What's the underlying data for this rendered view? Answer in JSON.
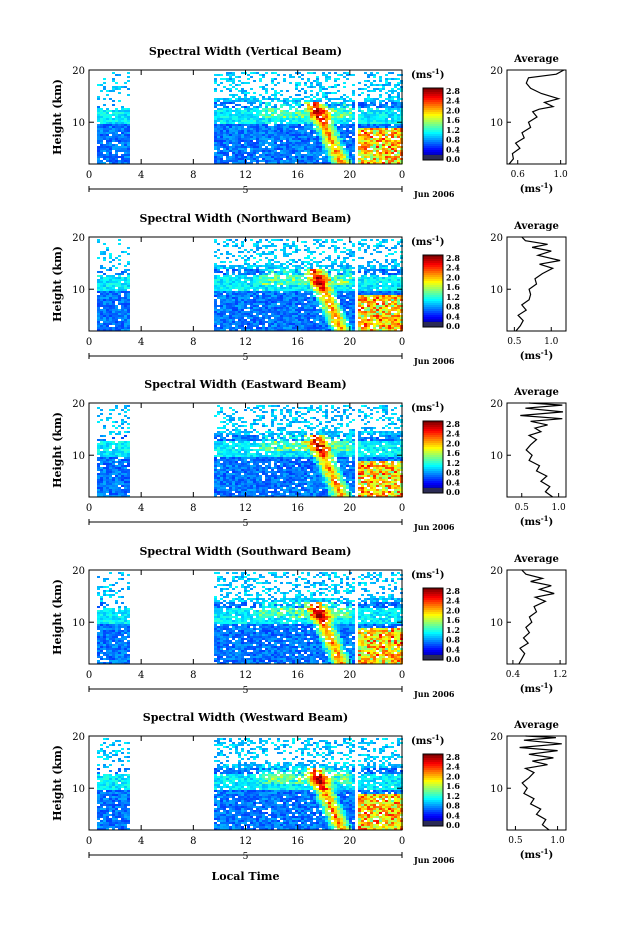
{
  "figure": {
    "xlabel": "Local Time",
    "date_label": "Jun 2006",
    "day_label": "5",
    "avg_title": "Average",
    "unit_label": "(ms",
    "unit_exp": "-1",
    "unit_close": ")",
    "ylabel": "Height (km)"
  },
  "chart_data": [
    {
      "type": "heatmap",
      "title": "Spectral Width (Vertical Beam)",
      "x_ticks": [
        "0",
        "4",
        "8",
        "12",
        "16",
        "20",
        "0"
      ],
      "y_ticks": [
        "20",
        "10"
      ],
      "colorbar_ticks": [
        "2.8",
        "2.4",
        "2.0",
        "1.6",
        "1.2",
        "0.8",
        "0.4",
        "0.0"
      ],
      "data_gaps_hours": [
        [
          3,
          9.5
        ],
        [
          20.3,
          20.6
        ]
      ],
      "avg_profile": {
        "xticks": [
          "0.6",
          "1.0"
        ],
        "xlim": [
          0.5,
          1.05
        ],
        "ylim": [
          2,
          20
        ],
        "points": [
          [
            0.52,
            2
          ],
          [
            0.56,
            3
          ],
          [
            0.55,
            4
          ],
          [
            0.62,
            5
          ],
          [
            0.58,
            6
          ],
          [
            0.66,
            7
          ],
          [
            0.64,
            8
          ],
          [
            0.72,
            9
          ],
          [
            0.7,
            10
          ],
          [
            0.78,
            11
          ],
          [
            0.74,
            12
          ],
          [
            0.8,
            12.5
          ],
          [
            0.93,
            13
          ],
          [
            0.85,
            13.8
          ],
          [
            0.98,
            14.5
          ],
          [
            0.82,
            15.5
          ],
          [
            0.72,
            16.5
          ],
          [
            0.68,
            17.5
          ],
          [
            0.7,
            18.5
          ],
          [
            0.96,
            19.2
          ],
          [
            1.03,
            20
          ]
        ]
      }
    },
    {
      "type": "heatmap",
      "title": "Spectral Width (Northward Beam)",
      "x_ticks": [
        "0",
        "4",
        "8",
        "12",
        "16",
        "20",
        "0"
      ],
      "y_ticks": [
        "20",
        "10"
      ],
      "colorbar_ticks": [
        "2.8",
        "2.4",
        "2.0",
        "1.6",
        "1.2",
        "0.8",
        "0.4",
        "0.0"
      ],
      "data_gaps_hours": [
        [
          3,
          9.5
        ],
        [
          20.3,
          20.6
        ]
      ],
      "avg_profile": {
        "xticks": [
          "0.5",
          "1.0"
        ],
        "xlim": [
          0.4,
          1.2
        ],
        "ylim": [
          2,
          20
        ],
        "points": [
          [
            0.52,
            2
          ],
          [
            0.58,
            3
          ],
          [
            0.62,
            4
          ],
          [
            0.55,
            5
          ],
          [
            0.66,
            6
          ],
          [
            0.6,
            7
          ],
          [
            0.7,
            8
          ],
          [
            0.72,
            9
          ],
          [
            0.7,
            10
          ],
          [
            0.8,
            11
          ],
          [
            0.78,
            12
          ],
          [
            0.88,
            13
          ],
          [
            1.02,
            14
          ],
          [
            0.84,
            14.8
          ],
          [
            1.12,
            15.5
          ],
          [
            0.82,
            16.5
          ],
          [
            1.0,
            17.3
          ],
          [
            0.74,
            18
          ],
          [
            0.95,
            18.6
          ],
          [
            0.65,
            19.3
          ],
          [
            0.6,
            20
          ]
        ]
      }
    },
    {
      "type": "heatmap",
      "title": "Spectral Width (Eastward Beam)",
      "x_ticks": [
        "0",
        "4",
        "8",
        "12",
        "16",
        "20",
        "0"
      ],
      "y_ticks": [
        "20",
        "10"
      ],
      "colorbar_ticks": [
        "2.8",
        "2.4",
        "2.0",
        "1.6",
        "1.2",
        "0.8",
        "0.4",
        "0.0"
      ],
      "data_gaps_hours": [
        [
          3,
          9.5
        ],
        [
          20.3,
          20.6
        ]
      ],
      "avg_profile": {
        "xticks": [
          "0.5",
          "1.0"
        ],
        "xlim": [
          0.3,
          1.1
        ],
        "ylim": [
          2,
          20
        ],
        "points": [
          [
            0.92,
            2
          ],
          [
            0.82,
            3
          ],
          [
            0.88,
            4
          ],
          [
            0.76,
            5
          ],
          [
            0.84,
            6
          ],
          [
            0.7,
            7
          ],
          [
            0.74,
            8
          ],
          [
            0.6,
            9
          ],
          [
            0.64,
            10
          ],
          [
            0.56,
            11
          ],
          [
            0.62,
            12
          ],
          [
            0.7,
            13
          ],
          [
            0.6,
            13.8
          ],
          [
            0.76,
            14.5
          ],
          [
            0.68,
            15.2
          ],
          [
            0.85,
            15.8
          ],
          [
            0.62,
            16.5
          ],
          [
            1.05,
            17
          ],
          [
            0.48,
            17.6
          ],
          [
            1.06,
            18.3
          ],
          [
            0.55,
            19
          ],
          [
            1.05,
            19.6
          ],
          [
            0.6,
            20
          ]
        ]
      }
    },
    {
      "type": "heatmap",
      "title": "Spectral Width (Southward Beam)",
      "x_ticks": [
        "0",
        "4",
        "8",
        "12",
        "16",
        "20",
        "0"
      ],
      "y_ticks": [
        "20",
        "10"
      ],
      "colorbar_ticks": [
        "2.8",
        "2.4",
        "2.0",
        "1.6",
        "1.2",
        "0.8",
        "0.4",
        "0.0"
      ],
      "data_gaps_hours": [
        [
          3,
          9.5
        ],
        [
          20.3,
          20.6
        ]
      ],
      "avg_profile": {
        "xticks": [
          "0.4",
          "1.2"
        ],
        "xlim": [
          0.3,
          1.3
        ],
        "ylim": [
          2,
          20
        ],
        "points": [
          [
            0.5,
            2
          ],
          [
            0.55,
            3
          ],
          [
            0.6,
            4
          ],
          [
            0.52,
            5
          ],
          [
            0.66,
            6
          ],
          [
            0.58,
            7
          ],
          [
            0.68,
            8
          ],
          [
            0.62,
            9
          ],
          [
            0.72,
            10
          ],
          [
            0.68,
            11
          ],
          [
            0.8,
            12
          ],
          [
            0.76,
            13
          ],
          [
            0.95,
            14
          ],
          [
            0.78,
            14.8
          ],
          [
            1.1,
            15.5
          ],
          [
            0.85,
            16.3
          ],
          [
            1.05,
            17
          ],
          [
            0.7,
            17.8
          ],
          [
            0.9,
            18.4
          ],
          [
            0.62,
            19.2
          ],
          [
            0.55,
            20
          ]
        ]
      }
    },
    {
      "type": "heatmap",
      "title": "Spectral Width (Westward Beam)",
      "x_ticks": [
        "0",
        "4",
        "8",
        "12",
        "16",
        "20",
        "0"
      ],
      "y_ticks": [
        "20",
        "10"
      ],
      "colorbar_ticks": [
        "2.8",
        "2.4",
        "2.0",
        "1.6",
        "1.2",
        "0.8",
        "0.4",
        "0.0"
      ],
      "data_gaps_hours": [
        [
          3,
          9.5
        ],
        [
          20.3,
          20.6
        ]
      ],
      "avg_profile": {
        "xticks": [
          "0.5",
          "1.0"
        ],
        "xlim": [
          0.4,
          1.1
        ],
        "ylim": [
          2,
          20
        ],
        "points": [
          [
            0.9,
            2
          ],
          [
            0.82,
            3
          ],
          [
            0.86,
            4
          ],
          [
            0.75,
            5
          ],
          [
            0.8,
            6
          ],
          [
            0.68,
            7
          ],
          [
            0.72,
            8
          ],
          [
            0.6,
            9
          ],
          [
            0.64,
            10
          ],
          [
            0.58,
            11
          ],
          [
            0.66,
            12
          ],
          [
            0.72,
            13
          ],
          [
            0.62,
            13.8
          ],
          [
            0.88,
            14.5
          ],
          [
            0.7,
            15.2
          ],
          [
            0.95,
            15.8
          ],
          [
            0.66,
            16.5
          ],
          [
            1.0,
            17.2
          ],
          [
            0.55,
            17.8
          ],
          [
            1.05,
            18.5
          ],
          [
            0.6,
            19.2
          ],
          [
            0.98,
            19.7
          ],
          [
            0.62,
            20
          ]
        ]
      }
    }
  ]
}
